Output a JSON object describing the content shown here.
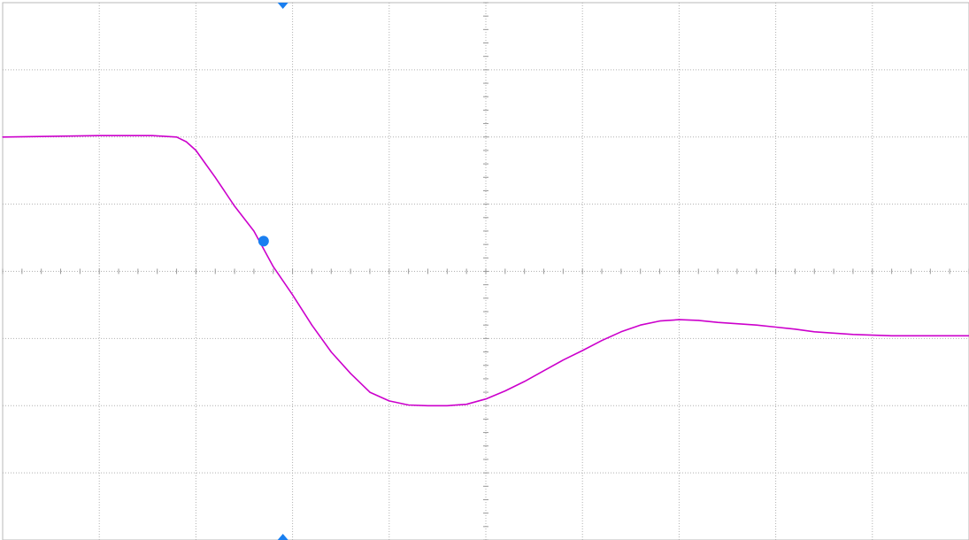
{
  "chart_data": {
    "type": "line",
    "title": "",
    "xlabel": "",
    "ylabel": "",
    "grid": true,
    "xlim": [
      -5,
      5
    ],
    "ylim": [
      -4,
      4
    ],
    "divisions": {
      "x": 10,
      "y": 8
    },
    "series": [
      {
        "color": "#cc00cc",
        "x": [
          -5.0,
          -4.0,
          -3.45,
          -3.2,
          -3.1,
          -3.0,
          -2.9,
          -2.8,
          -2.6,
          -2.4,
          -2.2,
          -2.0,
          -1.8,
          -1.6,
          -1.4,
          -1.2,
          -1.0,
          -0.8,
          -0.6,
          -0.4,
          -0.2,
          0.0,
          0.2,
          0.4,
          0.6,
          0.8,
          1.0,
          1.2,
          1.4,
          1.6,
          1.8,
          2.0,
          2.2,
          2.4,
          2.6,
          2.8,
          3.0,
          3.2,
          3.4,
          3.6,
          3.8,
          4.0,
          4.2,
          4.4,
          4.6,
          4.8,
          5.0
        ],
        "y": [
          2.0,
          2.02,
          2.02,
          2.0,
          1.93,
          1.8,
          1.6,
          1.4,
          0.97,
          0.6,
          0.07,
          -0.35,
          -0.8,
          -1.2,
          -1.52,
          -1.8,
          -1.93,
          -1.99,
          -2.0,
          -2.0,
          -1.98,
          -1.9,
          -1.78,
          -1.64,
          -1.48,
          -1.32,
          -1.18,
          -1.03,
          -0.9,
          -0.8,
          -0.74,
          -0.72,
          -0.73,
          -0.76,
          -0.78,
          -0.8,
          -0.83,
          -0.86,
          -0.9,
          -0.92,
          -0.94,
          -0.95,
          -0.96,
          -0.96,
          -0.96,
          -0.96,
          -0.96
        ]
      }
    ],
    "trigger_marker": {
      "x": -2.1,
      "color": "#1a7ff0"
    },
    "cursor_point": {
      "x": -2.3,
      "y": 0.45,
      "color": "#1a7ff0"
    }
  }
}
